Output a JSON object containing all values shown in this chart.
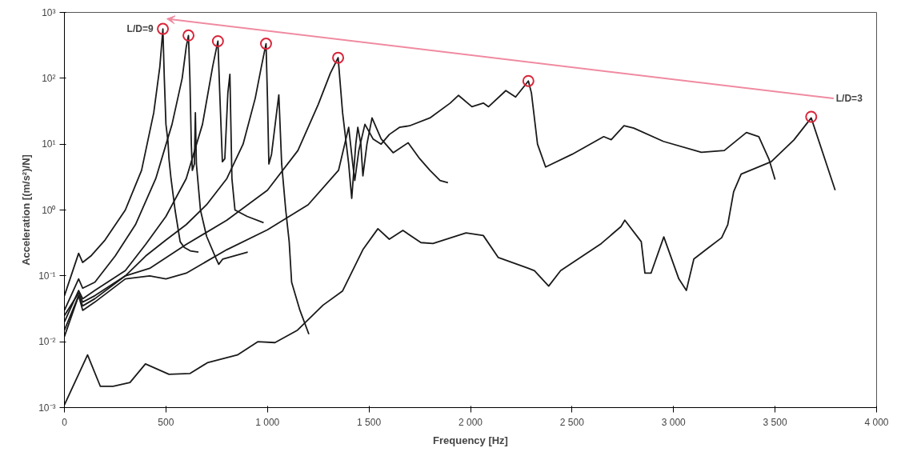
{
  "chart_data": {
    "type": "line",
    "xlabel": "Frequency [Hz]",
    "ylabel": "Acceleration [(m/s²)/N]",
    "log": "y",
    "grid": false,
    "marker": "none",
    "line_style": "solid",
    "xlim": [
      0,
      4000
    ],
    "xticks": [
      0,
      500,
      {
        "value": 1000,
        "label": "1 000"
      },
      {
        "value": 1500,
        "label": "1 500"
      },
      {
        "value": 2000,
        "label": "2 000"
      },
      {
        "value": 2500,
        "label": "2 500"
      },
      {
        "value": 3000,
        "label": "3 000"
      },
      {
        "value": 3500,
        "label": "3 500"
      },
      {
        "value": 4000,
        "label": "4 000"
      }
    ],
    "ylim": [
      0.001,
      1000
    ],
    "yticks": [
      {
        "value": 0.001,
        "label": "10⁻³"
      },
      {
        "value": 0.01,
        "label": "10⁻²"
      },
      {
        "value": 0.1,
        "label": "10⁻¹"
      },
      {
        "value": 1,
        "label": "10⁰"
      },
      {
        "value": 10,
        "label": "10¹"
      },
      {
        "value": 100,
        "label": "10²"
      },
      {
        "value": 1000,
        "label": "10³"
      }
    ],
    "annotations": [
      "L/D=9",
      "L/D=3"
    ],
    "series": [
      {
        "color": "#1a1a1a",
        "x": [
          0,
          70,
          90,
          130,
          200,
          300,
          380,
          440,
          470,
          485,
          492,
          500,
          510,
          515,
          525,
          545,
          570,
          590,
          620,
          660
        ],
        "values": [
          0.05,
          0.22,
          0.16,
          0.2,
          0.35,
          1,
          4,
          30,
          150,
          560,
          100,
          20,
          11,
          6,
          3,
          1,
          0.33,
          0.27,
          0.24,
          0.23
        ]
      },
      {
        "color": "#1a1a1a",
        "x": [
          0,
          70,
          90,
          150,
          250,
          350,
          450,
          530,
          580,
          600,
          611,
          618,
          625,
          630,
          640,
          645,
          650,
          670,
          700,
          748,
          760,
          780,
          903
        ],
        "values": [
          0.03,
          0.09,
          0.065,
          0.08,
          0.2,
          0.6,
          3,
          20,
          100,
          300,
          447,
          100,
          10,
          4,
          5,
          30,
          5,
          1,
          0.4,
          0.18,
          0.15,
          0.18,
          0.23
        ]
      },
      {
        "color": "#1a1a1a",
        "x": [
          0,
          70,
          90,
          150,
          300,
          400,
          500,
          600,
          680,
          730,
          756,
          765,
          778,
          790,
          805,
          815,
          825,
          840,
          900,
          981
        ],
        "values": [
          0.02,
          0.06,
          0.045,
          0.06,
          0.12,
          0.3,
          0.8,
          3,
          20,
          150,
          366,
          60,
          5.4,
          6,
          60,
          115,
          3,
          1,
          0.8,
          0.64
        ]
      },
      {
        "color": "#1a1a1a",
        "x": [
          0,
          70,
          90,
          150,
          300,
          400,
          500,
          600,
          700,
          800,
          880,
          940,
          970,
          993,
          1000,
          1007,
          1020,
          1045,
          1056,
          1070,
          1090,
          1107,
          1119,
          1160,
          1204
        ],
        "values": [
          0.012,
          0.05,
          0.035,
          0.045,
          0.1,
          0.2,
          0.35,
          0.6,
          1.2,
          3,
          10,
          50,
          150,
          335,
          50,
          5,
          7,
          30,
          56,
          5,
          1,
          0.33,
          0.08,
          0.03,
          0.013
        ]
      },
      {
        "color": "#1a1a1a",
        "x": [
          0,
          70,
          90,
          150,
          300,
          420,
          600,
          800,
          1000,
          1150,
          1250,
          1310,
          1348,
          1370,
          1400,
          1415,
          1435,
          1445,
          1460,
          1470,
          1490,
          1515,
          1560,
          1619,
          1693,
          1750,
          1800,
          1850,
          1889
        ],
        "values": [
          0.025,
          0.055,
          0.04,
          0.05,
          0.1,
          0.13,
          0.3,
          0.7,
          2,
          8,
          40,
          120,
          205,
          30,
          5,
          1.5,
          10,
          18,
          10,
          3.3,
          10,
          25,
          12,
          7.4,
          10.5,
          6,
          4,
          2.8,
          2.6
        ]
      },
      {
        "color": "#1a1a1a",
        "x": [
          0,
          70,
          90,
          150,
          300,
          420,
          500,
          600,
          800,
          1000,
          1200,
          1350,
          1400,
          1420,
          1430,
          1450,
          1480,
          1520,
          1560,
          1600,
          1650,
          1700,
          1800,
          1900,
          1941,
          2007,
          2063,
          2089,
          2174,
          2222,
          2285,
          2300,
          2330,
          2370,
          2500,
          2656,
          2693,
          2756,
          2804,
          2950,
          3137,
          3250,
          3359,
          3420,
          3470,
          3500
        ],
        "values": [
          0.015,
          0.05,
          0.03,
          0.04,
          0.09,
          0.1,
          0.09,
          0.11,
          0.25,
          0.5,
          1.2,
          4,
          18,
          5,
          2.8,
          8,
          20,
          12,
          10,
          14,
          18,
          19,
          25,
          42,
          55,
          37,
          42,
          37,
          65,
          52,
          91,
          60,
          10,
          4.5,
          7,
          13,
          11.7,
          19,
          17.5,
          11,
          7.5,
          8,
          15,
          13,
          5.9,
          2.9
        ]
      },
      {
        "color": "#1a1a1a",
        "x": [
          0,
          114,
          177,
          240,
          323,
          399,
          515,
          619,
          704,
          852,
          952,
          1037,
          1148,
          1274,
          1370,
          1470,
          1544,
          1600,
          1667,
          1756,
          1815,
          1978,
          2063,
          2137,
          2285,
          2315,
          2385,
          2444,
          2644,
          2741,
          2760,
          2841,
          2859,
          2889,
          2952,
          3026,
          3063,
          3100,
          3174,
          3237,
          3267,
          3296,
          3333,
          3481,
          3593,
          3678,
          3796
        ],
        "values": [
          0.0011,
          0.0063,
          0.0021,
          0.0021,
          0.0024,
          0.0046,
          0.0032,
          0.0033,
          0.0048,
          0.0063,
          0.01,
          0.0097,
          0.015,
          0.036,
          0.059,
          0.25,
          0.52,
          0.36,
          0.49,
          0.32,
          0.31,
          0.45,
          0.41,
          0.19,
          0.13,
          0.12,
          0.07,
          0.12,
          0.31,
          0.56,
          0.7,
          0.33,
          0.11,
          0.11,
          0.39,
          0.09,
          0.06,
          0.18,
          0.27,
          0.38,
          0.6,
          1.9,
          3.5,
          5.4,
          11.6,
          25,
          2
        ]
      },
      {
        "type": "scatter",
        "marker": "circle",
        "color": "#d9263a",
        "x": [
          485,
          611,
          756,
          993,
          1348,
          2285,
          3678
        ],
        "values": [
          562,
          447,
          366,
          335,
          205,
          91,
          26
        ]
      }
    ]
  }
}
